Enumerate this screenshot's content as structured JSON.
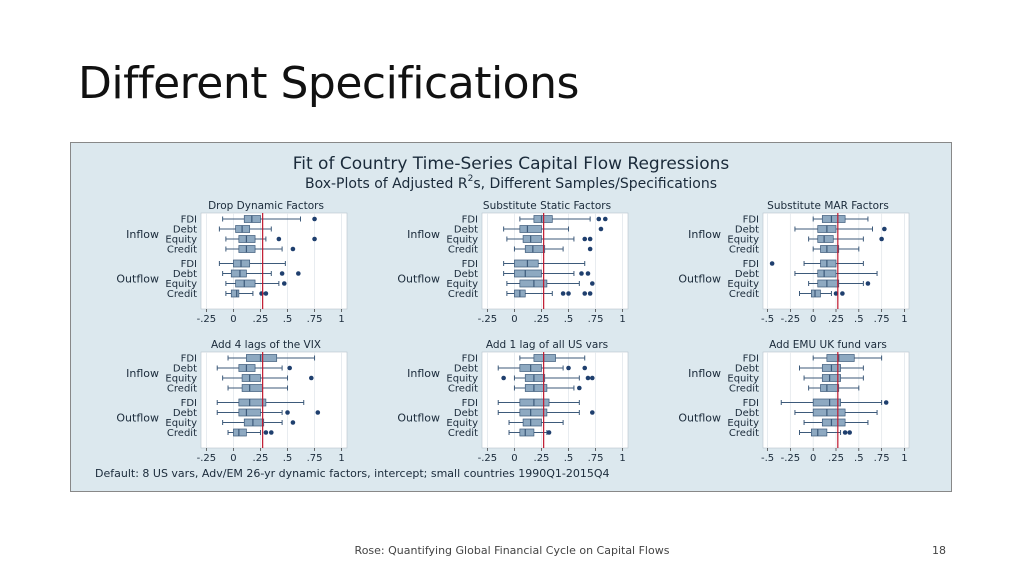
{
  "slide": {
    "title": "Different Specifications",
    "footer": "Rose: Quantifying Global Financial Cycle on Capital Flows",
    "page_number": "18"
  },
  "figure": {
    "title": "Fit of Country Time-Series Capital Flow Regressions",
    "subtitle_pre": "Box-Plots of Adjusted R",
    "subtitle_sup": "2",
    "subtitle_post": "s, Different Samples/Specifications",
    "note": "Default: 8 US vars, Adv/EM 26-yr dynamic factors, intercept; small countries 1990Q1-2015Q4",
    "colors": {
      "box": "#8ea9c1",
      "whisker": "#3d5a7a",
      "outlier": "#1f3f6e",
      "refline": "#c0182e",
      "background": "#dce8ee",
      "panel": "#ffffff"
    }
  },
  "chart_data": [
    {
      "type": "box",
      "title": "Drop Dynamic Factors",
      "groups": [
        "Inflow",
        "Outflow"
      ],
      "categories": [
        "FDI",
        "Debt",
        "Equity",
        "Credit"
      ],
      "xticks": [
        "-.25",
        "0",
        ".25",
        ".5",
        ".75",
        "1"
      ],
      "xlim": [
        -0.3,
        1.05
      ],
      "refline": 0.27,
      "boxes": [
        {
          "group": "Inflow",
          "cat": "FDI",
          "min": -0.1,
          "q1": 0.1,
          "med": 0.17,
          "q3": 0.25,
          "max": 0.62,
          "outliers": [
            0.75
          ]
        },
        {
          "group": "Inflow",
          "cat": "Debt",
          "min": -0.13,
          "q1": 0.02,
          "med": 0.08,
          "q3": 0.15,
          "max": 0.35,
          "outliers": []
        },
        {
          "group": "Inflow",
          "cat": "Equity",
          "min": -0.07,
          "q1": 0.05,
          "med": 0.12,
          "q3": 0.2,
          "max": 0.3,
          "outliers": [
            0.42,
            0.75
          ]
        },
        {
          "group": "Inflow",
          "cat": "Credit",
          "min": -0.07,
          "q1": 0.05,
          "med": 0.12,
          "q3": 0.2,
          "max": 0.45,
          "outliers": [
            0.55
          ]
        },
        {
          "group": "Outflow",
          "cat": "FDI",
          "min": -0.13,
          "q1": 0.0,
          "med": 0.07,
          "q3": 0.15,
          "max": 0.48,
          "outliers": []
        },
        {
          "group": "Outflow",
          "cat": "Debt",
          "min": -0.1,
          "q1": -0.02,
          "med": 0.06,
          "q3": 0.12,
          "max": 0.35,
          "outliers": [
            0.45,
            0.6
          ]
        },
        {
          "group": "Outflow",
          "cat": "Equity",
          "min": -0.07,
          "q1": 0.02,
          "med": 0.1,
          "q3": 0.2,
          "max": 0.42,
          "outliers": [
            0.47
          ]
        },
        {
          "group": "Outflow",
          "cat": "Credit",
          "min": -0.07,
          "q1": -0.02,
          "med": 0.03,
          "q3": 0.05,
          "max": 0.18,
          "outliers": [
            0.26,
            0.3
          ]
        }
      ]
    },
    {
      "type": "box",
      "title": "Substitute Static Factors",
      "groups": [
        "Inflow",
        "Outflow"
      ],
      "categories": [
        "FDI",
        "Debt",
        "Equity",
        "Credit"
      ],
      "xticks": [
        "-.25",
        "0",
        ".25",
        ".5",
        ".75",
        "1"
      ],
      "xlim": [
        -0.3,
        1.05
      ],
      "refline": 0.27,
      "boxes": [
        {
          "group": "Inflow",
          "cat": "FDI",
          "min": 0.05,
          "q1": 0.18,
          "med": 0.25,
          "q3": 0.35,
          "max": 0.7,
          "outliers": [
            0.78,
            0.84
          ]
        },
        {
          "group": "Inflow",
          "cat": "Debt",
          "min": -0.1,
          "q1": 0.05,
          "med": 0.12,
          "q3": 0.25,
          "max": 0.5,
          "outliers": [
            0.8
          ]
        },
        {
          "group": "Inflow",
          "cat": "Equity",
          "min": -0.07,
          "q1": 0.08,
          "med": 0.15,
          "q3": 0.25,
          "max": 0.55,
          "outliers": [
            0.65,
            0.7
          ]
        },
        {
          "group": "Inflow",
          "cat": "Credit",
          "min": 0.0,
          "q1": 0.1,
          "med": 0.17,
          "q3": 0.28,
          "max": 0.45,
          "outliers": [
            0.7
          ]
        },
        {
          "group": "Outflow",
          "cat": "FDI",
          "min": -0.1,
          "q1": 0.0,
          "med": 0.12,
          "q3": 0.22,
          "max": 0.65,
          "outliers": []
        },
        {
          "group": "Outflow",
          "cat": "Debt",
          "min": -0.1,
          "q1": 0.0,
          "med": 0.1,
          "q3": 0.25,
          "max": 0.55,
          "outliers": [
            0.62,
            0.68
          ]
        },
        {
          "group": "Outflow",
          "cat": "Equity",
          "min": -0.07,
          "q1": 0.05,
          "med": 0.18,
          "q3": 0.3,
          "max": 0.6,
          "outliers": [
            0.72
          ]
        },
        {
          "group": "Outflow",
          "cat": "Credit",
          "min": -0.07,
          "q1": 0.0,
          "med": 0.05,
          "q3": 0.1,
          "max": 0.35,
          "outliers": [
            0.45,
            0.5,
            0.65,
            0.7
          ]
        }
      ]
    },
    {
      "type": "box",
      "title": "Substitute MAR Factors",
      "groups": [
        "Inflow",
        "Outflow"
      ],
      "categories": [
        "FDI",
        "Debt",
        "Equity",
        "Credit"
      ],
      "xticks": [
        "-.5",
        "-.25",
        "0",
        ".25",
        ".5",
        ".75",
        "1"
      ],
      "xlim": [
        -0.55,
        1.05
      ],
      "refline": 0.27,
      "boxes": [
        {
          "group": "Inflow",
          "cat": "FDI",
          "min": 0.0,
          "q1": 0.1,
          "med": 0.2,
          "q3": 0.35,
          "max": 0.6,
          "outliers": []
        },
        {
          "group": "Inflow",
          "cat": "Debt",
          "min": -0.2,
          "q1": 0.05,
          "med": 0.15,
          "q3": 0.25,
          "max": 0.65,
          "outliers": [
            0.78
          ]
        },
        {
          "group": "Inflow",
          "cat": "Equity",
          "min": -0.05,
          "q1": 0.05,
          "med": 0.12,
          "q3": 0.22,
          "max": 0.55,
          "outliers": [
            0.75
          ]
        },
        {
          "group": "Inflow",
          "cat": "Credit",
          "min": 0.0,
          "q1": 0.08,
          "med": 0.15,
          "q3": 0.28,
          "max": 0.5,
          "outliers": []
        },
        {
          "group": "Outflow",
          "cat": "FDI",
          "min": -0.1,
          "q1": 0.08,
          "med": 0.15,
          "q3": 0.25,
          "max": 0.55,
          "outliers": [
            -0.45
          ]
        },
        {
          "group": "Outflow",
          "cat": "Debt",
          "min": -0.2,
          "q1": 0.05,
          "med": 0.12,
          "q3": 0.25,
          "max": 0.7,
          "outliers": []
        },
        {
          "group": "Outflow",
          "cat": "Equity",
          "min": -0.05,
          "q1": 0.05,
          "med": 0.15,
          "q3": 0.28,
          "max": 0.55,
          "outliers": [
            0.6
          ]
        },
        {
          "group": "Outflow",
          "cat": "Credit",
          "min": -0.15,
          "q1": -0.02,
          "med": 0.02,
          "q3": 0.08,
          "max": 0.2,
          "outliers": [
            0.25,
            0.32
          ]
        }
      ]
    },
    {
      "type": "box",
      "title": "Add 4 lags of the VIX",
      "groups": [
        "Inflow",
        "Outflow"
      ],
      "categories": [
        "FDI",
        "Debt",
        "Equity",
        "Credit"
      ],
      "xticks": [
        "-.25",
        "0",
        ".25",
        ".5",
        ".75",
        "1"
      ],
      "xlim": [
        -0.3,
        1.05
      ],
      "refline": 0.27,
      "boxes": [
        {
          "group": "Inflow",
          "cat": "FDI",
          "min": -0.05,
          "q1": 0.12,
          "med": 0.25,
          "q3": 0.4,
          "max": 0.75,
          "outliers": []
        },
        {
          "group": "Inflow",
          "cat": "Debt",
          "min": -0.15,
          "q1": 0.05,
          "med": 0.12,
          "q3": 0.2,
          "max": 0.45,
          "outliers": [
            0.52
          ]
        },
        {
          "group": "Inflow",
          "cat": "Equity",
          "min": -0.1,
          "q1": 0.08,
          "med": 0.15,
          "q3": 0.25,
          "max": 0.5,
          "outliers": [
            0.72
          ]
        },
        {
          "group": "Inflow",
          "cat": "Credit",
          "min": -0.05,
          "q1": 0.08,
          "med": 0.15,
          "q3": 0.27,
          "max": 0.5,
          "outliers": []
        },
        {
          "group": "Outflow",
          "cat": "FDI",
          "min": -0.15,
          "q1": 0.05,
          "med": 0.15,
          "q3": 0.3,
          "max": 0.65,
          "outliers": []
        },
        {
          "group": "Outflow",
          "cat": "Debt",
          "min": -0.15,
          "q1": 0.05,
          "med": 0.12,
          "q3": 0.25,
          "max": 0.45,
          "outliers": [
            0.5,
            0.78
          ]
        },
        {
          "group": "Outflow",
          "cat": "Equity",
          "min": -0.1,
          "q1": 0.1,
          "med": 0.18,
          "q3": 0.28,
          "max": 0.45,
          "outliers": [
            0.55
          ]
        },
        {
          "group": "Outflow",
          "cat": "Credit",
          "min": -0.05,
          "q1": 0.0,
          "med": 0.05,
          "q3": 0.12,
          "max": 0.25,
          "outliers": [
            0.3,
            0.35
          ]
        }
      ]
    },
    {
      "type": "box",
      "title": "Add 1 lag of all US vars",
      "groups": [
        "Inflow",
        "Outflow"
      ],
      "categories": [
        "FDI",
        "Debt",
        "Equity",
        "Credit"
      ],
      "xticks": [
        "-.25",
        "0",
        ".25",
        ".5",
        ".75",
        "1"
      ],
      "xlim": [
        -0.3,
        1.05
      ],
      "refline": 0.27,
      "boxes": [
        {
          "group": "Inflow",
          "cat": "FDI",
          "min": 0.05,
          "q1": 0.18,
          "med": 0.27,
          "q3": 0.38,
          "max": 0.65,
          "outliers": []
        },
        {
          "group": "Inflow",
          "cat": "Debt",
          "min": -0.15,
          "q1": 0.05,
          "med": 0.15,
          "q3": 0.25,
          "max": 0.45,
          "outliers": [
            0.5,
            0.65
          ]
        },
        {
          "group": "Inflow",
          "cat": "Equity",
          "min": 0.0,
          "q1": 0.1,
          "med": 0.18,
          "q3": 0.28,
          "max": 0.6,
          "outliers": [
            -0.1,
            0.68,
            0.72
          ]
        },
        {
          "group": "Inflow",
          "cat": "Credit",
          "min": 0.0,
          "q1": 0.1,
          "med": 0.18,
          "q3": 0.3,
          "max": 0.55,
          "outliers": [
            0.6
          ]
        },
        {
          "group": "Outflow",
          "cat": "FDI",
          "min": -0.15,
          "q1": 0.05,
          "med": 0.18,
          "q3": 0.32,
          "max": 0.6,
          "outliers": []
        },
        {
          "group": "Outflow",
          "cat": "Debt",
          "min": -0.15,
          "q1": 0.05,
          "med": 0.15,
          "q3": 0.3,
          "max": 0.6,
          "outliers": [
            0.72
          ]
        },
        {
          "group": "Outflow",
          "cat": "Equity",
          "min": -0.05,
          "q1": 0.08,
          "med": 0.15,
          "q3": 0.25,
          "max": 0.45,
          "outliers": []
        },
        {
          "group": "Outflow",
          "cat": "Credit",
          "min": -0.05,
          "q1": 0.05,
          "med": 0.1,
          "q3": 0.18,
          "max": 0.3,
          "outliers": [
            0.32
          ]
        }
      ]
    },
    {
      "type": "box",
      "title": "Add EMU UK fund vars",
      "groups": [
        "Inflow",
        "Outflow"
      ],
      "categories": [
        "FDI",
        "Debt",
        "Equity",
        "Credit"
      ],
      "xticks": [
        "-.5",
        "-.25",
        "0",
        ".25",
        ".5",
        ".75",
        "1"
      ],
      "xlim": [
        -0.55,
        1.05
      ],
      "refline": 0.27,
      "boxes": [
        {
          "group": "Inflow",
          "cat": "FDI",
          "min": 0.0,
          "q1": 0.15,
          "med": 0.28,
          "q3": 0.45,
          "max": 0.75,
          "outliers": []
        },
        {
          "group": "Inflow",
          "cat": "Debt",
          "min": -0.15,
          "q1": 0.1,
          "med": 0.2,
          "q3": 0.3,
          "max": 0.55,
          "outliers": []
        },
        {
          "group": "Inflow",
          "cat": "Equity",
          "min": -0.1,
          "q1": 0.1,
          "med": 0.18,
          "q3": 0.3,
          "max": 0.55,
          "outliers": []
        },
        {
          "group": "Inflow",
          "cat": "Credit",
          "min": -0.05,
          "q1": 0.08,
          "med": 0.15,
          "q3": 0.28,
          "max": 0.5,
          "outliers": []
        },
        {
          "group": "Outflow",
          "cat": "FDI",
          "min": -0.35,
          "q1": 0.0,
          "med": 0.18,
          "q3": 0.3,
          "max": 0.75,
          "outliers": [
            0.8
          ]
        },
        {
          "group": "Outflow",
          "cat": "Debt",
          "min": -0.2,
          "q1": 0.0,
          "med": 0.15,
          "q3": 0.35,
          "max": 0.7,
          "outliers": []
        },
        {
          "group": "Outflow",
          "cat": "Equity",
          "min": -0.1,
          "q1": 0.1,
          "med": 0.2,
          "q3": 0.35,
          "max": 0.6,
          "outliers": []
        },
        {
          "group": "Outflow",
          "cat": "Credit",
          "min": -0.15,
          "q1": -0.02,
          "med": 0.05,
          "q3": 0.15,
          "max": 0.3,
          "outliers": [
            0.35,
            0.4
          ]
        }
      ]
    }
  ]
}
